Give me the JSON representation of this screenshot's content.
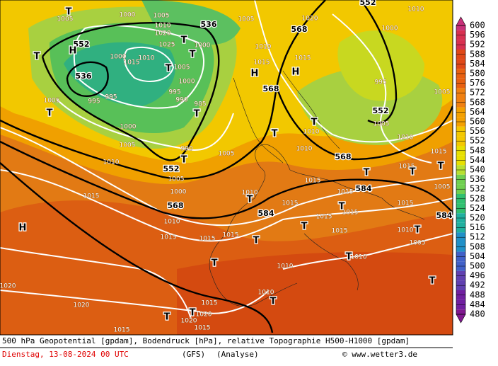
{
  "map": {
    "height_labels": [
      536,
      552,
      536,
      568,
      552,
      568,
      552,
      552,
      568,
      568,
      584,
      584,
      584
    ],
    "isobar_labels": [
      1005,
      1000,
      1005,
      1010,
      1020,
      1025,
      1000,
      1010,
      1015,
      1000,
      1005,
      1000,
      995,
      995,
      990,
      985,
      995,
      1005,
      1000,
      1005,
      990,
      1005,
      1010,
      1005,
      1000,
      1015,
      1010,
      1015,
      1015,
      1015,
      1010,
      1015,
      1010,
      1015,
      1020,
      1005,
      1010,
      1000,
      995,
      1005,
      1005,
      1010,
      1010,
      1010,
      1015,
      1015,
      1015,
      1015,
      1015,
      1015,
      1015,
      1015,
      1015,
      1010,
      1005,
      1005,
      1010,
      1010,
      1010,
      1020,
      1020,
      1015,
      1020,
      1020,
      1015,
      1015
    ],
    "pressure_systems": [
      "T",
      "H",
      "T",
      "T",
      "T",
      "T",
      "H",
      "H",
      "T",
      "T",
      "T",
      "T",
      "T",
      "T",
      "T",
      "T",
      "T",
      "T",
      "T",
      "T",
      "T",
      "T",
      "T",
      "T",
      "T",
      "T",
      "H",
      "T"
    ]
  },
  "colorbar": {
    "labels": [
      600,
      596,
      592,
      588,
      584,
      580,
      576,
      572,
      568,
      564,
      560,
      556,
      552,
      548,
      544,
      540,
      536,
      532,
      528,
      524,
      520,
      516,
      512,
      508,
      504,
      500,
      496,
      492,
      488,
      484,
      480
    ]
  },
  "footer": {
    "description": "500 hPa Geopotential [gpdam], Bodendruck [hPa], relative Topographie H500-H1000 [gpdam]",
    "date": "Dienstag, 13-08-2024  00 UTC",
    "model": "(GFS)",
    "run": "(Analyse)",
    "source": "© www.wetter3.de"
  }
}
